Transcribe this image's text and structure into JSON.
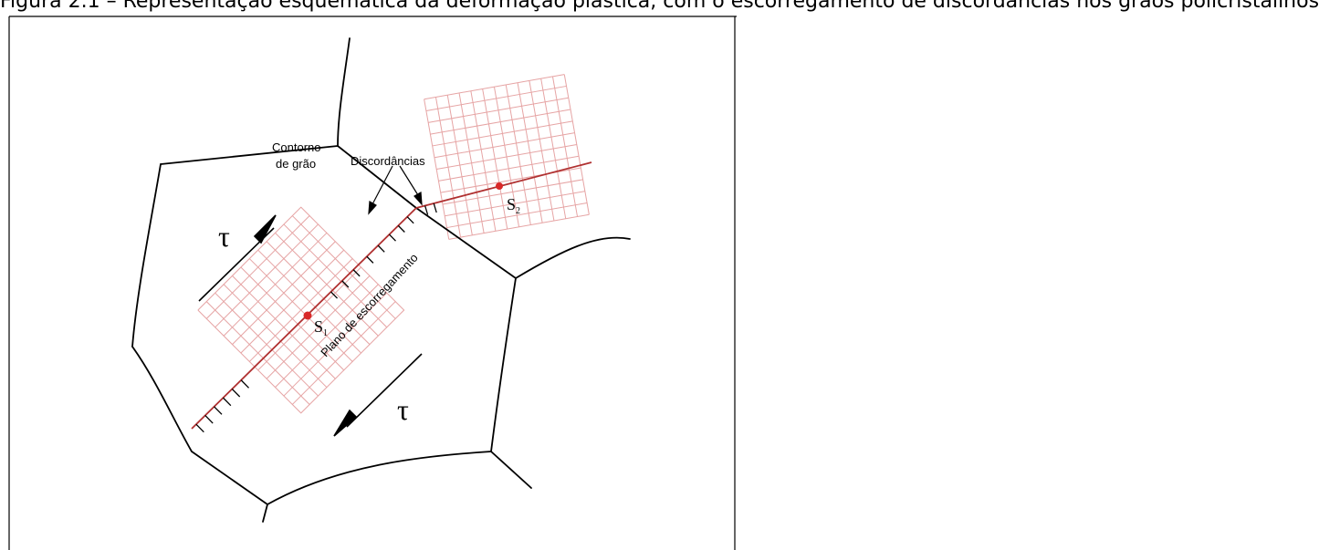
{
  "caption": {
    "partial_text": "Figura 2.1 – Representação esquemática da deformação plástica, com o escorregamento de discordâncias nos grãos policristalinos"
  },
  "labels": {
    "grain_boundary_line1": "Contorno",
    "grain_boundary_line2": "de grão",
    "dislocations": "Discordâncias",
    "slip_plane": "Plano de escorregamento",
    "s1_letter": "S",
    "s1_sub": "1",
    "s2_letter": "S",
    "s2_sub": "2",
    "tau_upper": "τ",
    "tau_lower": "τ"
  },
  "colors": {
    "grid": "#e6a4a4",
    "slip_line": "#b03030",
    "node": "#d92828",
    "boundary": "#000000"
  }
}
